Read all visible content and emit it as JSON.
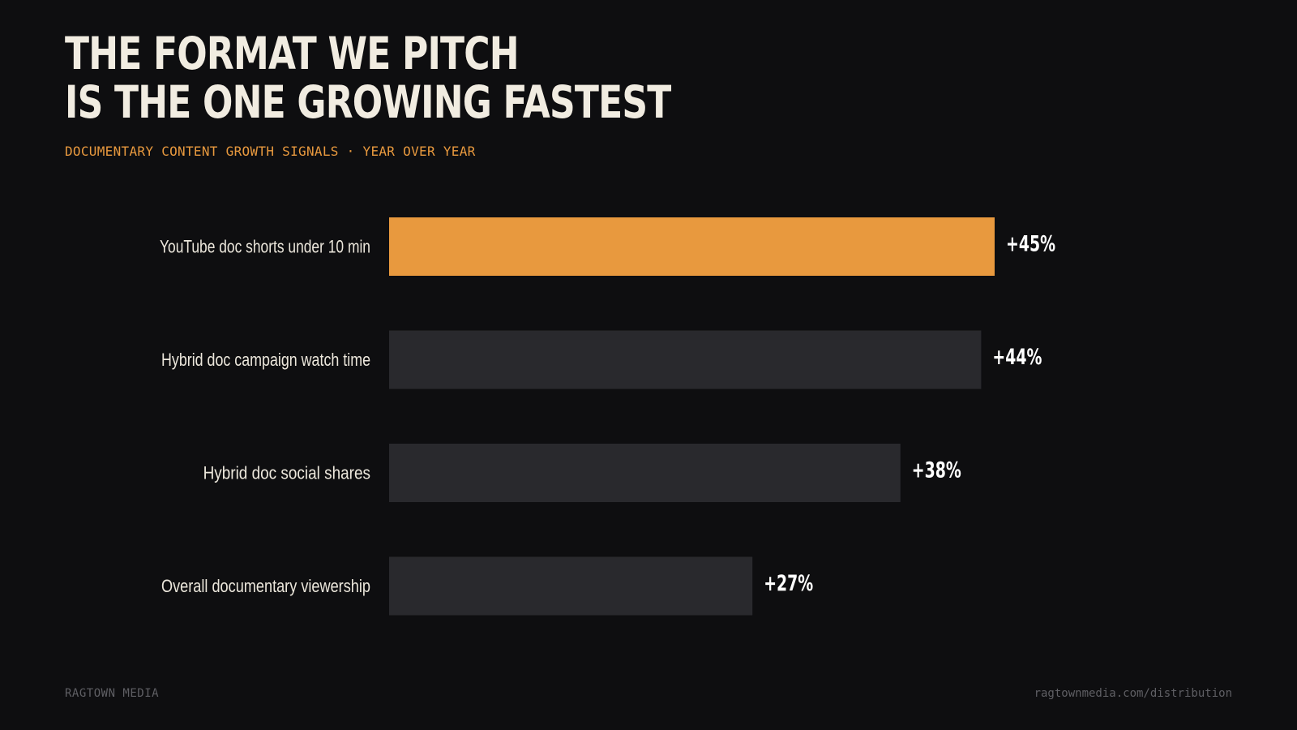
{
  "header": {
    "title_line1": "THE FORMAT WE PITCH",
    "title_line2": "IS THE ONE GROWING FASTEST",
    "subtitle": "DOCUMENTARY CONTENT GROWTH SIGNALS · YEAR OVER YEAR"
  },
  "chart_data": {
    "type": "bar",
    "orientation": "horizontal",
    "categories": [
      "YouTube doc shorts under 10 min",
      "Hybrid doc campaign watch time",
      "Hybrid doc social shares",
      "Overall documentary viewership"
    ],
    "values": [
      45,
      44,
      38,
      27
    ],
    "value_labels": [
      "+45%",
      "+44%",
      "+38%",
      "+27%"
    ],
    "highlight_index": 0,
    "xlim": [
      0,
      50
    ],
    "grid": false,
    "legend": "none",
    "colors": {
      "highlight": "#e8993e",
      "bar": "#29292d"
    }
  },
  "footer": {
    "brand": "RAGTOWN MEDIA",
    "url": "ragtownmedia.com/distribution"
  }
}
